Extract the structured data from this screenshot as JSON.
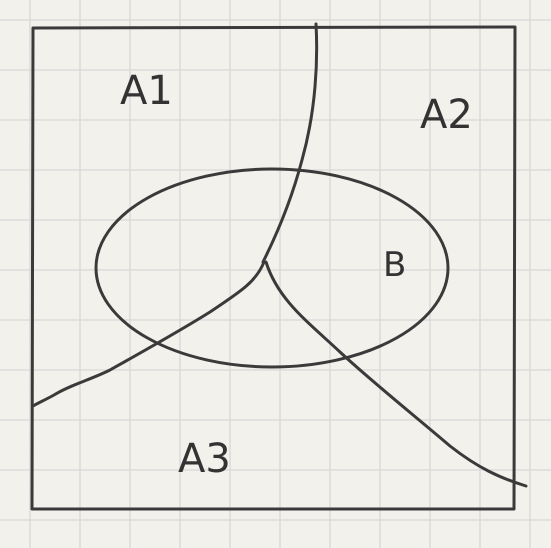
{
  "diagram": {
    "regions": [
      {
        "id": "A1",
        "label": "A1"
      },
      {
        "id": "A2",
        "label": "A2"
      },
      {
        "id": "A3",
        "label": "A3"
      }
    ],
    "set": {
      "id": "B",
      "label": "B"
    }
  },
  "colors": {
    "paper": "#f3f1ec",
    "grid": "#d8d8d8",
    "ink": "#3a3a3a"
  }
}
